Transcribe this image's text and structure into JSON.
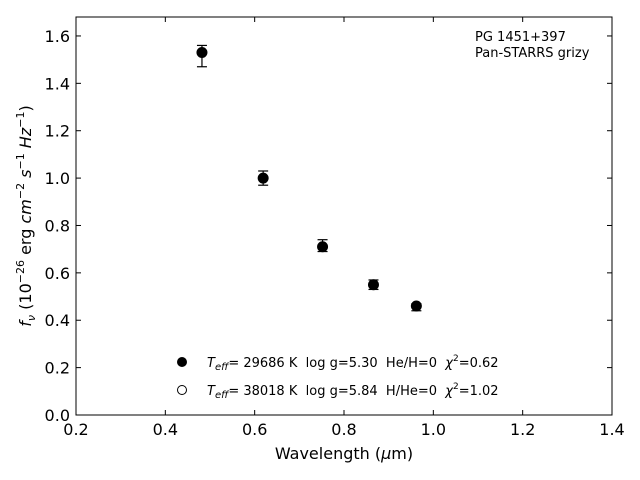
{
  "chart_data": {
    "type": "scatter",
    "xlabel": "Wavelength (μm)",
    "ylabel": "f_ν (10^−26 erg cm^−2 s^−1 Hz^−1)",
    "xlim": [
      0.2,
      1.4
    ],
    "ylim": [
      0.0,
      1.68
    ],
    "xticks": [
      "0.2",
      "0.4",
      "0.6",
      "0.8",
      "1.0",
      "1.2",
      "1.4"
    ],
    "yticks": [
      "0.0",
      "0.2",
      "0.4",
      "0.6",
      "0.8",
      "1.0",
      "1.2",
      "1.4",
      "1.6"
    ],
    "grid": false,
    "legend_position": "lower-left",
    "annotation": [
      "PG 1451+397",
      "Pan-STARRS grizy"
    ],
    "series": [
      {
        "name": "Teff= 29686 K  log g=5.30  He/H=0  χ²=0.62",
        "marker": "filled",
        "x": [
          0.482,
          0.619,
          0.752,
          0.866,
          0.962
        ],
        "y": [
          1.53,
          1.0,
          0.71,
          0.55,
          0.46
        ],
        "err_low": [
          0.06,
          0.03,
          0.02,
          0.02,
          0.02
        ],
        "err_high": [
          0.03,
          0.03,
          0.03,
          0.02,
          0.01
        ]
      },
      {
        "name": "Teff= 38018 K  log g=5.84  H/He=0  χ²=1.02",
        "marker": "open",
        "x": [],
        "y": []
      }
    ]
  },
  "legend": [
    {
      "sym": "T",
      "sub": "eff",
      "rest": "= 29686 K  log g=5.30  He/H=0  ",
      "chi": "χ",
      "sup": "2",
      "val": "=0.62"
    },
    {
      "sym": "T",
      "sub": "eff",
      "rest": "= 38018 K  log g=5.84  H/He=0  ",
      "chi": "χ",
      "sup": "2",
      "val": "=1.02"
    }
  ],
  "ylabel_parts": {
    "f": "f",
    "nu": "ν",
    "open": " (10",
    "exp1": "−26",
    "erg": " erg ",
    "cm": "cm",
    "exp2": "−2",
    "s": " s",
    "exp3": "−1",
    "hz": " Hz",
    "exp4": "−1",
    "close": ")"
  },
  "xlabel_parts": {
    "pre": "Wavelength (",
    "mu": "μ",
    "post": "m)"
  }
}
